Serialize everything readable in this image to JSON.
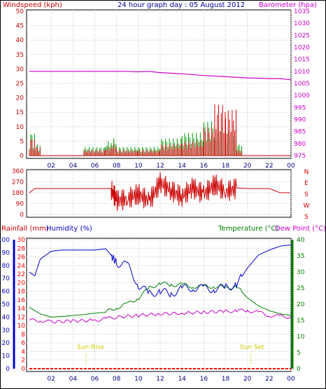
{
  "header": {
    "windspeed_label": "Windspeed (kph)",
    "title": "24 hour graph day : 05 August 2012",
    "barometer_label": "Barometer (hpa)"
  },
  "colors": {
    "wind": "#cc0000",
    "gust": "#009900",
    "barometer": "#cc00cc",
    "humidity": "#0000cc",
    "temperature": "#008000",
    "dewpoint": "#cc00cc",
    "rain": "#ff0000",
    "sun": "#cccc00",
    "grid": "#c0c0c0"
  },
  "lower": {
    "rain_label": "Rainfall (mm)",
    "humidity_label": "Humidity (%)",
    "temperature_label": "Temperature (°C)",
    "dewpoint_label": "Dew Point (°C)",
    "sunrise_label": "Sun Rise",
    "sunset_label": "Sun Set"
  },
  "chart_data": [
    {
      "type": "line",
      "panel": "wind_barometer",
      "x_ticks": [
        "02",
        "04",
        "06",
        "08",
        "10",
        "12",
        "14",
        "16",
        "18",
        "20",
        "22",
        "00"
      ],
      "y_left": {
        "label": "Windspeed (kph)",
        "ticks": [
          0,
          5,
          10,
          15,
          20,
          25,
          30,
          35,
          40,
          45,
          50
        ],
        "range": [
          0,
          50
        ]
      },
      "y_right": {
        "label": "Barometer (hpa)",
        "ticks": [
          975,
          980,
          985,
          990,
          995,
          1000,
          1005,
          1010,
          1015,
          1020,
          1025,
          1030,
          1035
        ],
        "range": [
          975,
          1035
        ]
      },
      "series": [
        {
          "name": "Barometer (hpa)",
          "axis": "right",
          "x": [
            0,
            2,
            4,
            6,
            8,
            9,
            10,
            11,
            12,
            14,
            16,
            18,
            20,
            22,
            23,
            24
          ],
          "y": [
            1010,
            1010,
            1010,
            1010,
            1010,
            1010,
            1009.8,
            1010,
            1009.5,
            1009,
            1008.3,
            1007.8,
            1007.3,
            1007,
            1007,
            1006.5
          ]
        },
        {
          "name": "Windspeed (kph)",
          "axis": "left",
          "x": [
            0,
            0.5,
            1,
            4.8,
            5,
            7,
            7.5,
            8,
            10,
            12,
            14,
            16,
            17,
            18,
            19,
            19.5,
            20,
            24
          ],
          "y": [
            6,
            3,
            0,
            0,
            2,
            3,
            4,
            2,
            2,
            4,
            5,
            10,
            18,
            16,
            2,
            0,
            0,
            0
          ]
        },
        {
          "name": "Gust (kph)",
          "axis": "left",
          "x": [
            0,
            0.5,
            1,
            4.8,
            5,
            7,
            7.5,
            8,
            10,
            12,
            14,
            16,
            17,
            18,
            19,
            19.5,
            20,
            24
          ],
          "y": [
            8,
            4,
            0,
            0,
            3,
            5,
            6,
            3,
            3,
            6,
            8,
            12,
            10,
            9,
            4,
            0,
            0,
            0
          ]
        }
      ]
    },
    {
      "type": "line",
      "panel": "wind_direction",
      "y_ticks": [
        0,
        90,
        180,
        270,
        360
      ],
      "y_right_labels": [
        "N",
        "E",
        "S",
        "W",
        "S"
      ],
      "series": [
        {
          "name": "Wind direction",
          "x": [
            0,
            0.5,
            2,
            4,
            6,
            7.5,
            8,
            9,
            10,
            11,
            12,
            13,
            14,
            15,
            16,
            17,
            18,
            19,
            20,
            21,
            22,
            23,
            24
          ],
          "y": [
            180,
            215,
            215,
            215,
            215,
            215,
            120,
            130,
            170,
            110,
            260,
            200,
            150,
            220,
            170,
            250,
            190,
            220,
            215,
            215,
            215,
            180,
            180
          ]
        }
      ]
    },
    {
      "type": "line",
      "panel": "temp_humidity",
      "x_ticks": [
        "02",
        "04",
        "06",
        "08",
        "10",
        "12",
        "14",
        "16",
        "18",
        "20",
        "22",
        "00"
      ],
      "y_left_humidity": {
        "label": "Humidity (%)",
        "ticks": [
          0,
          10,
          20,
          30,
          40,
          50,
          60,
          70,
          80,
          90,
          100
        ],
        "range": [
          0,
          100
        ]
      },
      "y_left_rain": {
        "label": "Rainfall (mm)",
        "ticks": [
          0,
          2,
          4,
          6,
          8,
          10,
          12,
          14,
          16,
          18,
          20,
          22,
          24,
          26,
          28,
          30
        ],
        "range": [
          0,
          30
        ]
      },
      "y_right": {
        "label": "Temperature (°C)",
        "ticks": [
          0,
          5,
          10,
          15,
          20,
          25,
          30,
          35,
          40
        ],
        "range": [
          0,
          40
        ]
      },
      "series": [
        {
          "name": "Humidity (%)",
          "axis": "humidity",
          "x": [
            0,
            0.5,
            1,
            2,
            3,
            4,
            5,
            6,
            7,
            7.5,
            8,
            9,
            10,
            11,
            12,
            13,
            14,
            15,
            16,
            17,
            18,
            19,
            20,
            21,
            22,
            23,
            24
          ],
          "y": [
            75,
            72,
            85,
            91,
            92,
            92,
            92,
            92,
            93,
            88,
            82,
            80,
            65,
            58,
            60,
            58,
            62,
            63,
            62,
            62,
            63,
            65,
            78,
            88,
            92,
            95,
            96
          ]
        },
        {
          "name": "Temperature (°C)",
          "axis": "right",
          "x": [
            0,
            0.5,
            1,
            2,
            3,
            4,
            5,
            6,
            7,
            8,
            9,
            10,
            11,
            12,
            13,
            14,
            15,
            16,
            17,
            18,
            19,
            20,
            21,
            22,
            23,
            24
          ],
          "y": [
            19,
            18,
            17,
            16,
            16.2,
            16.5,
            16.8,
            17.2,
            17.5,
            19,
            20,
            22,
            25,
            26.5,
            26,
            26,
            25.5,
            25.5,
            25.5,
            25,
            25.5,
            22,
            19.5,
            18,
            17,
            16.5
          ]
        },
        {
          "name": "Dew Point (°C)",
          "axis": "right",
          "x": [
            0,
            1,
            2,
            4,
            6,
            7,
            8,
            10,
            12,
            14,
            16,
            18,
            19,
            20,
            21,
            22,
            23,
            24
          ],
          "y": [
            15,
            15,
            14.5,
            14.8,
            15,
            15.5,
            16,
            16.5,
            17,
            17.2,
            17.5,
            17.8,
            18,
            18,
            17.5,
            16.5,
            16.2,
            16
          ]
        },
        {
          "name": "Rainfall (mm)",
          "axis": "rain",
          "x": [
            0,
            24
          ],
          "y": [
            0,
            0
          ]
        }
      ],
      "annotations": [
        {
          "text": "Sun Rise",
          "x": 5.2
        },
        {
          "text": "Sun Set",
          "x": 20.3
        }
      ]
    }
  ]
}
